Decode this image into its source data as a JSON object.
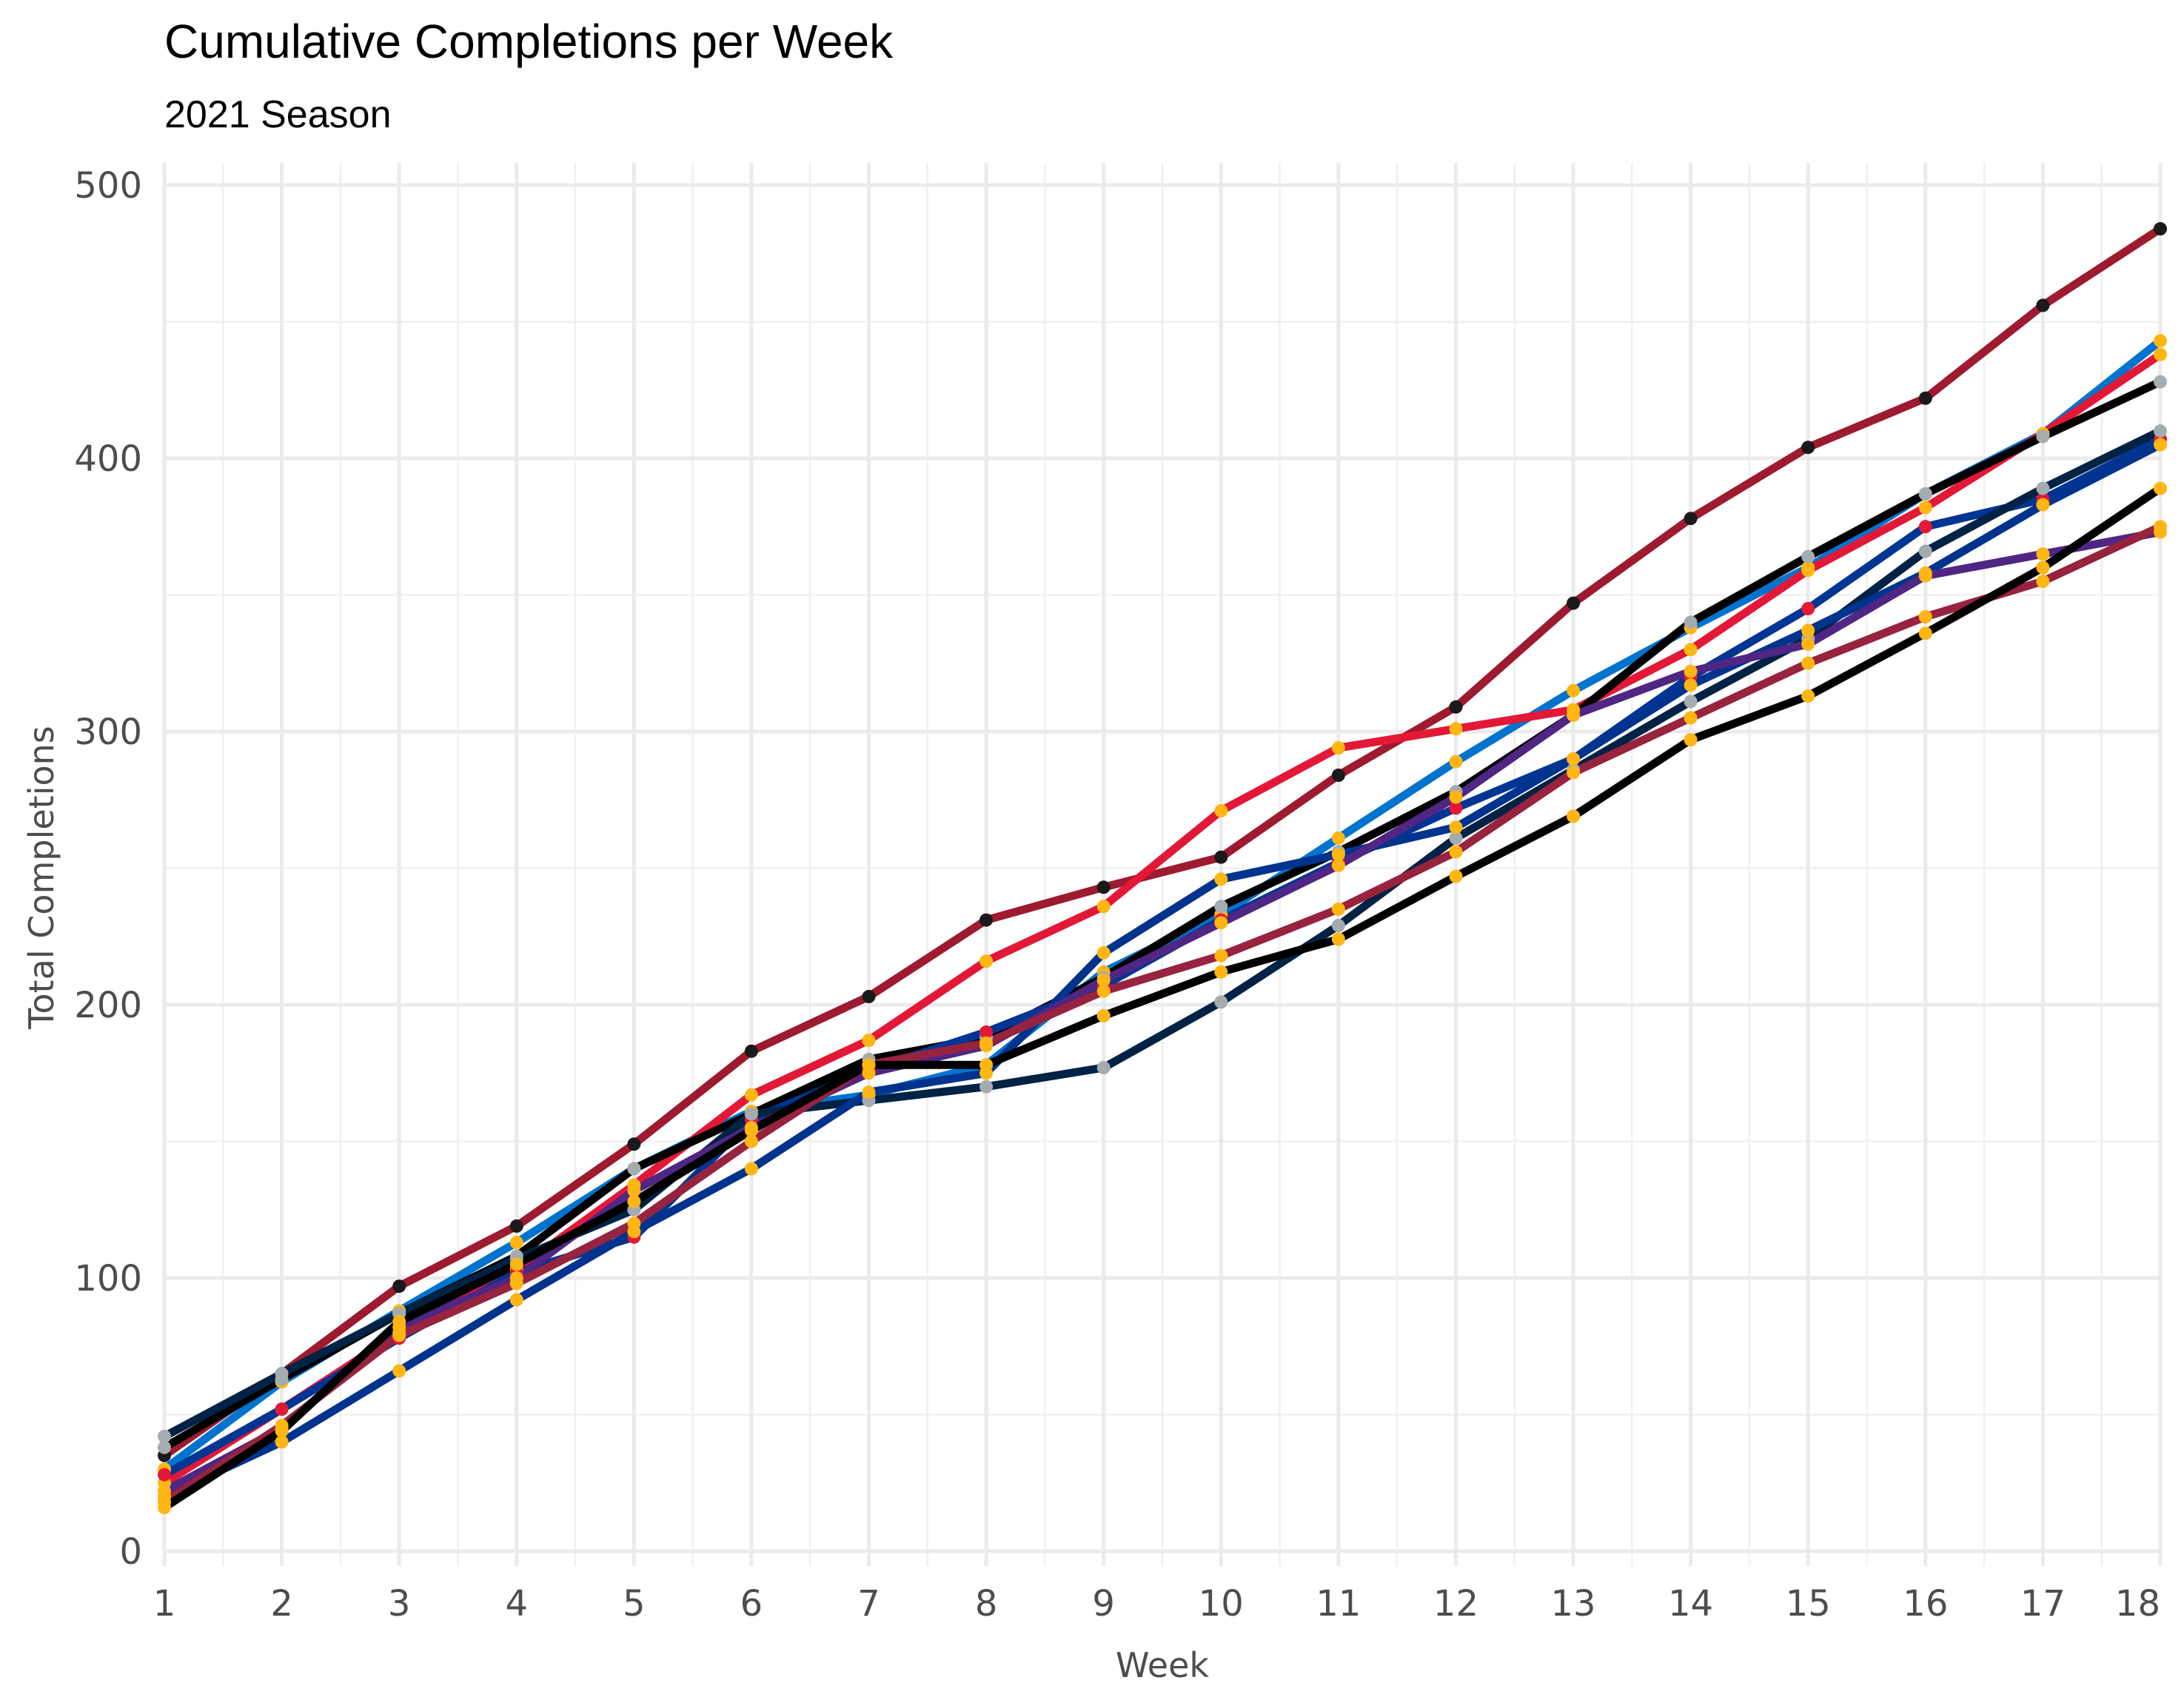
{
  "chart_data": {
    "type": "line",
    "title": "Cumulative Completions per Week",
    "subtitle": "2021 Season",
    "xlabel": "Week",
    "ylabel": "Total Completions",
    "x": [
      1,
      2,
      3,
      4,
      5,
      6,
      7,
      8,
      9,
      10,
      11,
      12,
      13,
      14,
      15,
      16,
      17,
      18
    ],
    "xlim": [
      1,
      18
    ],
    "ylim": [
      0,
      500
    ],
    "yticks": [
      0,
      100,
      200,
      300,
      400,
      500
    ],
    "grid": true,
    "legend": "none",
    "series": [
      {
        "line_color": "#9E1A2E",
        "point_color": "#1a1a1a",
        "values": [
          35,
          65,
          97,
          119,
          149,
          183,
          203,
          231,
          243,
          254,
          284,
          309,
          347,
          378,
          404,
          422,
          456,
          484
        ]
      },
      {
        "line_color": "#0073CF",
        "point_color": "#FFB612",
        "values": [
          30,
          62,
          88,
          113,
          140,
          161,
          167,
          178,
          212,
          233,
          261,
          289,
          315,
          338,
          360,
          387,
          409,
          443
        ]
      },
      {
        "line_color": "#E31837",
        "point_color": "#FFB612",
        "values": [
          25,
          52,
          80,
          103,
          134,
          167,
          187,
          216,
          236,
          271,
          294,
          301,
          308,
          330,
          359,
          382,
          409,
          438
        ]
      },
      {
        "line_color": "#000000",
        "point_color": "#A5ACAF",
        "values": [
          38,
          63,
          87,
          108,
          140,
          160,
          180,
          188,
          210,
          236,
          256,
          278,
          306,
          340,
          364,
          387,
          408,
          428
        ]
      },
      {
        "line_color": "#003594",
        "point_color": "#E31837",
        "values": [
          28,
          52,
          78,
          102,
          115,
          158,
          176,
          190,
          207,
          231,
          252,
          272,
          290,
          320,
          345,
          375,
          385,
          407
        ]
      },
      {
        "line_color": "#002244",
        "point_color": "#A5ACAF",
        "values": [
          42,
          65,
          87,
          107,
          125,
          160,
          165,
          170,
          177,
          201,
          229,
          261,
          286,
          311,
          334,
          366,
          389,
          410
        ]
      },
      {
        "line_color": "#00338D",
        "point_color": "#FFB612",
        "values": [
          20,
          40,
          66,
          92,
          117,
          140,
          168,
          175,
          219,
          246,
          255,
          265,
          290,
          317,
          337,
          358,
          383,
          405
        ]
      },
      {
        "line_color": "#4F2683",
        "point_color": "#FFB612",
        "values": [
          22,
          45,
          82,
          100,
          132,
          155,
          175,
          185,
          209,
          230,
          251,
          276,
          306,
          322,
          332,
          357,
          365,
          373
        ]
      },
      {
        "line_color": "#97233F",
        "point_color": "#FFB612",
        "values": [
          18,
          46,
          79,
          98,
          120,
          150,
          178,
          186,
          205,
          218,
          235,
          256,
          285,
          305,
          325,
          342,
          355,
          375
        ]
      },
      {
        "line_color": "#000000",
        "point_color": "#FFB612",
        "values": [
          16,
          44,
          84,
          105,
          128,
          154,
          178,
          178,
          196,
          212,
          224,
          247,
          269,
          297,
          313,
          336,
          360,
          389
        ]
      }
    ]
  }
}
